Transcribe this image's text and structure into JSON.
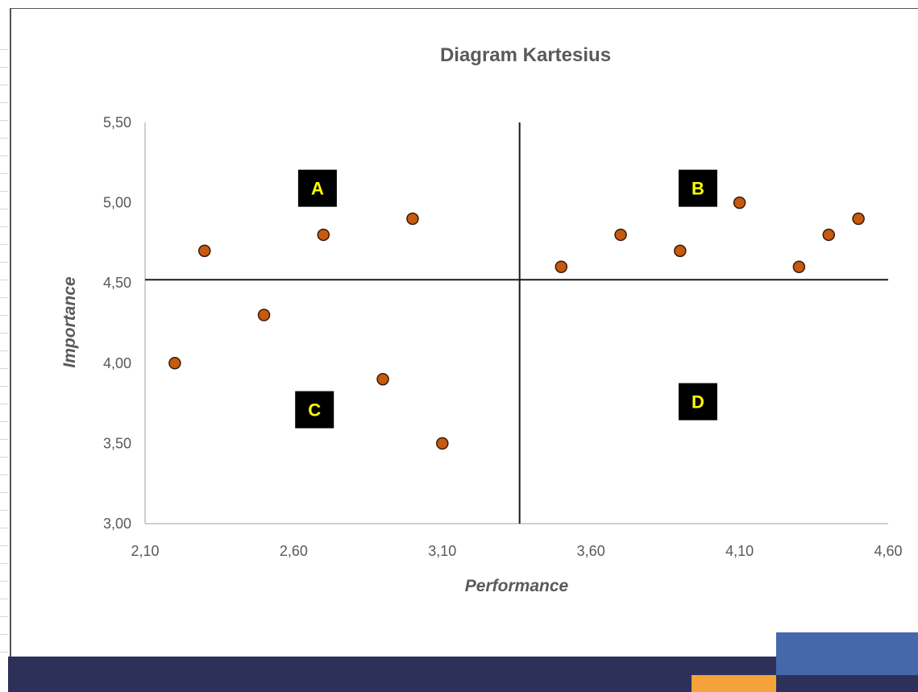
{
  "colors": {
    "marker_fill": "#c55a11",
    "marker_stroke": "#3a1a05",
    "label_box": "#000000",
    "label_text": "#ffff00",
    "band_dark": "#2d3159",
    "band_blue": "#4468a9",
    "band_orange": "#f4a33a"
  },
  "chart_data": {
    "type": "scatter",
    "title": "Diagram Kartesius",
    "xlabel": "Performance",
    "ylabel": "Importance",
    "xlim": [
      2.1,
      4.6
    ],
    "ylim": [
      3.0,
      5.5
    ],
    "x_ticks": [
      "2,10",
      "2,60",
      "3,10",
      "3,60",
      "4,10",
      "4,60"
    ],
    "y_ticks": [
      "3,00",
      "3,50",
      "4,00",
      "4,50",
      "5,00",
      "5,50"
    ],
    "x_tick_values": [
      2.1,
      2.6,
      3.1,
      3.6,
      4.1,
      4.6
    ],
    "y_tick_values": [
      3.0,
      3.5,
      4.0,
      4.5,
      5.0,
      5.5
    ],
    "divider_x": 3.36,
    "divider_y": 4.52,
    "grid": false,
    "legend": "none",
    "points": [
      {
        "x": 2.2,
        "y": 4.0
      },
      {
        "x": 2.3,
        "y": 4.7
      },
      {
        "x": 2.5,
        "y": 4.3
      },
      {
        "x": 2.7,
        "y": 4.8
      },
      {
        "x": 2.9,
        "y": 3.9
      },
      {
        "x": 3.0,
        "y": 4.9
      },
      {
        "x": 3.1,
        "y": 3.5
      },
      {
        "x": 3.5,
        "y": 4.6
      },
      {
        "x": 3.7,
        "y": 4.8
      },
      {
        "x": 3.9,
        "y": 4.7
      },
      {
        "x": 4.1,
        "y": 5.0
      },
      {
        "x": 4.3,
        "y": 4.6
      },
      {
        "x": 4.4,
        "y": 4.8
      },
      {
        "x": 4.5,
        "y": 4.9
      }
    ],
    "quadrants": [
      {
        "label": "A",
        "x": 2.68,
        "y": 5.09
      },
      {
        "label": "B",
        "x": 3.96,
        "y": 5.09
      },
      {
        "label": "C",
        "x": 2.67,
        "y": 3.71
      },
      {
        "label": "D",
        "x": 3.96,
        "y": 3.76
      }
    ]
  }
}
